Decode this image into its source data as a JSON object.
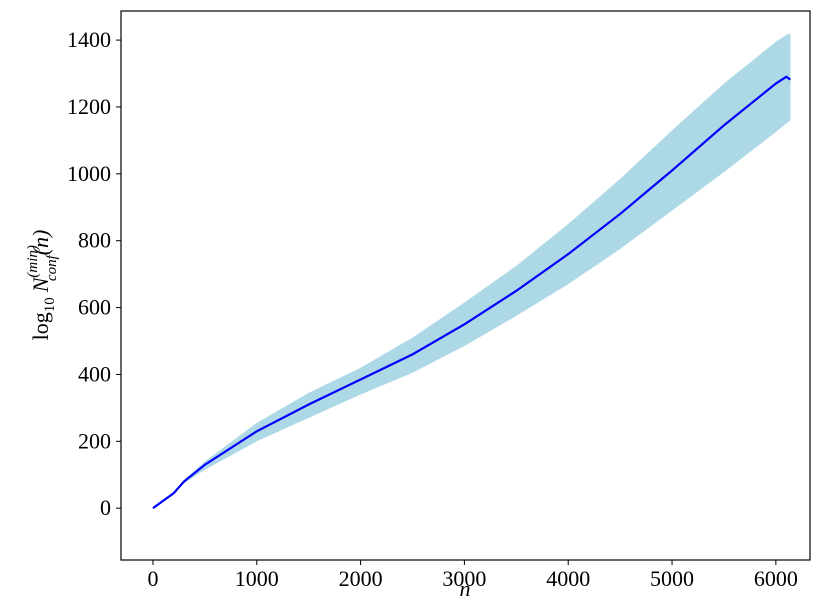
{
  "chart_data": {
    "type": "line",
    "xlabel": "n",
    "ylabel": {
      "base": "log",
      "base_sub": "10",
      "var": "N",
      "var_sup": "(min)",
      "var_sub": "conf",
      "arg": "(n)"
    },
    "x": [
      0,
      200,
      300,
      500,
      1000,
      1500,
      2000,
      2500,
      3000,
      3500,
      4000,
      4500,
      5000,
      5500,
      6000,
      6100,
      6140
    ],
    "series": [
      {
        "color": "#0000ff",
        "values": [
          0,
          45,
          80,
          130,
          230,
          310,
          385,
          460,
          550,
          650,
          760,
          880,
          1010,
          1145,
          1270,
          1290,
          1282
        ]
      }
    ],
    "band": {
      "color": "#add8e6",
      "lower": [
        0,
        43,
        75,
        115,
        200,
        270,
        340,
        405,
        485,
        575,
        670,
        775,
        890,
        1005,
        1125,
        1150,
        1160
      ],
      "upper": [
        0,
        47,
        85,
        140,
        255,
        345,
        420,
        510,
        615,
        725,
        850,
        985,
        1130,
        1270,
        1395,
        1415,
        1420
      ]
    },
    "xlim": [
      -308,
      6329
    ],
    "ylim": [
      -155,
      1487
    ],
    "xticks": [
      0,
      1000,
      2000,
      3000,
      4000,
      5000,
      6000
    ],
    "yticks": [
      0,
      200,
      400,
      600,
      800,
      1000,
      1200,
      1400
    ]
  }
}
